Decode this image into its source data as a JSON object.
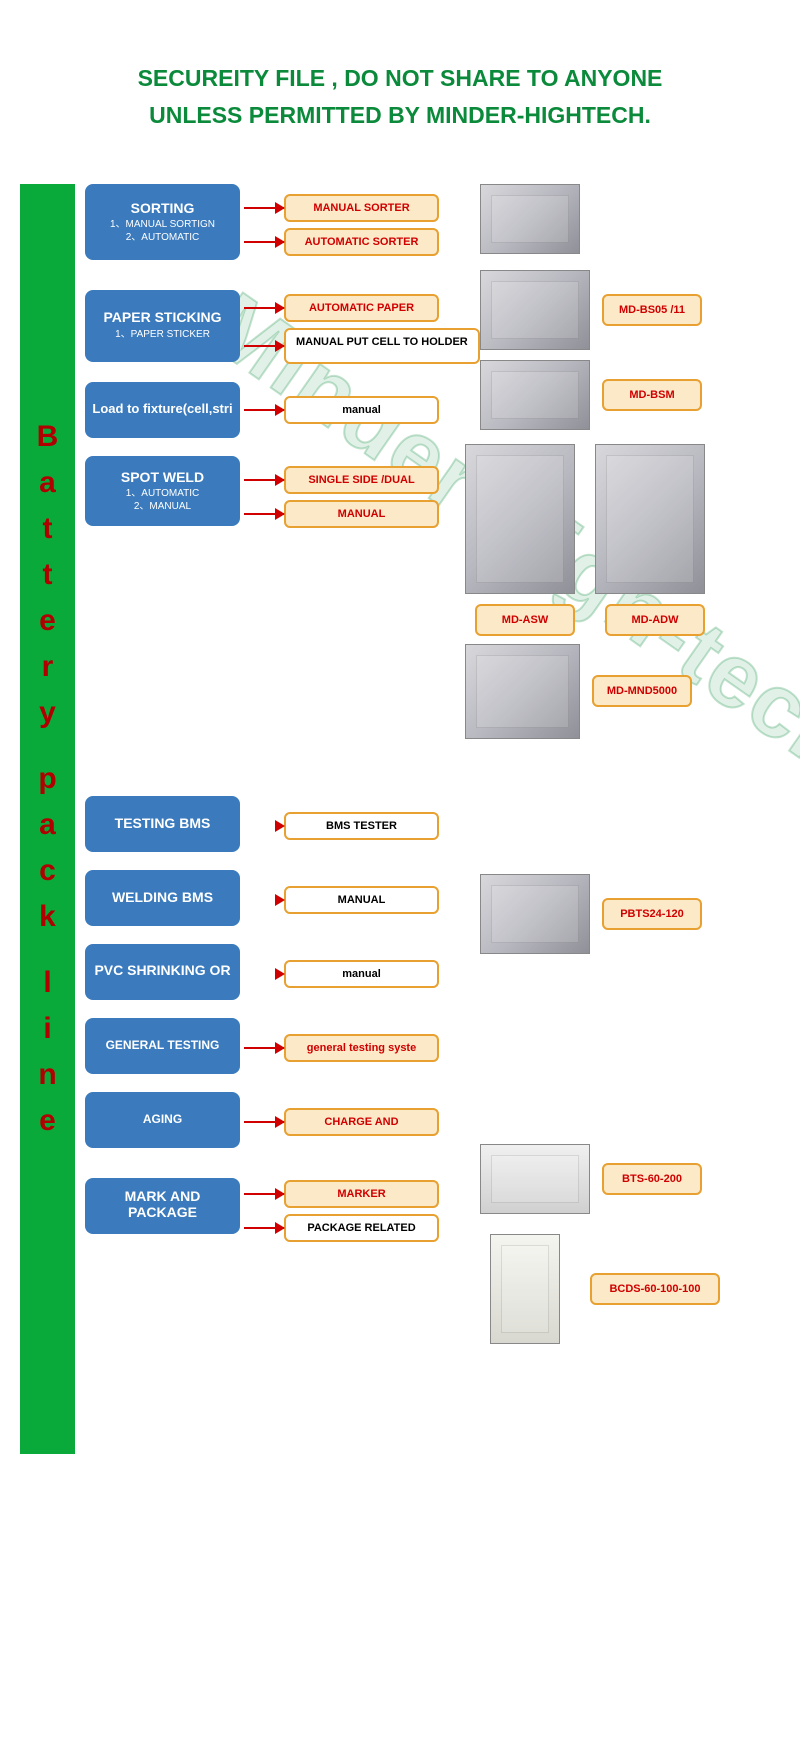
{
  "header": {
    "line1": "SECUREITY FILE , DO NOT SHARE TO ANYONE",
    "line2": "UNLESS PERMITTED BY MINDER-HIGHTECH."
  },
  "sidebar": {
    "letters": [
      "B",
      "a",
      "t",
      "t",
      "e",
      "r",
      "y",
      "",
      "p",
      "a",
      "c",
      "k",
      "",
      "l",
      "i",
      "n",
      "e"
    ]
  },
  "watermark": "Minder High-tech",
  "steps": {
    "sorting": {
      "title": "SORTING",
      "sub1": "1、MANUAL SORTIGN",
      "sub2": "2、AUTOMATIC",
      "m1": "MANUAL SORTER",
      "m2": "AUTOMATIC SORTER"
    },
    "paper": {
      "title": "PAPER STICKING",
      "sub1": "1、PAPER STICKER",
      "m1": "AUTOMATIC PAPER",
      "m2": "MANUAL PUT CELL TO HOLDER"
    },
    "load": {
      "title": "Load to fixture(cell,stri",
      "m1": "manual"
    },
    "spot": {
      "title": "SPOT WELD",
      "sub1": "1、AUTOMATIC",
      "sub2": "2、MANUAL",
      "m1": "SINGLE SIDE /DUAL",
      "m2": "MANUAL"
    },
    "testbms": {
      "title": "TESTING BMS",
      "m1": "BMS TESTER"
    },
    "weldbms": {
      "title": "WELDING BMS",
      "m1": "MANUAL"
    },
    "pvc": {
      "title": "PVC SHRINKING OR",
      "m1": "manual"
    },
    "general": {
      "title": "GENERAL TESTING",
      "m1": "general testing syste"
    },
    "aging": {
      "title": "AGING",
      "m1": "CHARGE AND"
    },
    "mark": {
      "title": "MARK AND PACKAGE",
      "m1": "MARKER",
      "m2": "PACKAGE RELATED"
    }
  },
  "products": {
    "bs05": "MD-BS05 /11",
    "bsm": "MD-BSM",
    "asw": "MD-ASW",
    "adw": "MD-ADW",
    "mnd": "MD-MND5000",
    "pbts": "PBTS24-120",
    "bts": "BTS-60-200",
    "bcds": "BCDS-60-100-100"
  },
  "colors": {
    "green": "#0aaa3a",
    "headerGreen": "#0a8a3a",
    "blue": "#3a7abd",
    "red": "#d00000",
    "orangeFill": "#fce9c8",
    "orangeBorder": "#e8a030"
  }
}
